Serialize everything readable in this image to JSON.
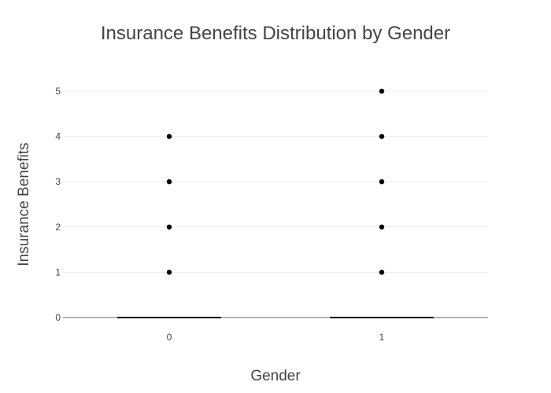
{
  "chart_data": {
    "type": "box",
    "title": "Insurance Benefits Distribution by Gender",
    "xlabel": "Gender",
    "ylabel": "Insurance Benefits",
    "categories": [
      "0",
      "1"
    ],
    "ylim": [
      0,
      5
    ],
    "yticks": [
      0,
      1,
      2,
      3,
      4,
      5
    ],
    "grid": true,
    "legend": "none",
    "series": [
      {
        "category": "0",
        "min": 0,
        "q1": 0,
        "median": 0,
        "q3": 0,
        "max": 0,
        "outliers": [
          1,
          2,
          3,
          4
        ]
      },
      {
        "category": "1",
        "min": 0,
        "q1": 0,
        "median": 0,
        "q3": 0,
        "max": 0,
        "outliers": [
          1,
          2,
          3,
          4,
          5
        ]
      }
    ],
    "colors": {
      "box": "#000000",
      "grid": "#eeeeee",
      "zeroline": "#999999",
      "text": "#444444"
    }
  }
}
